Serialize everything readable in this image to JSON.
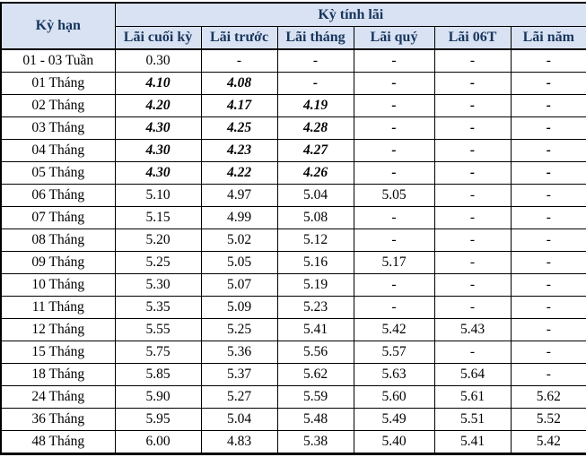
{
  "table": {
    "corner_header": "Kỳ hạn",
    "group_header": "Kỳ tính lãi",
    "columns": [
      "Lãi cuối kỳ",
      "Lãi trước",
      "Lãi tháng",
      "Lãi quý",
      "Lãi 06T",
      "Lãi năm"
    ],
    "rows": [
      {
        "term": "01 - 03 Tuần",
        "emphasis": false,
        "values": [
          "0.30",
          "-",
          "-",
          "-",
          "-",
          "-"
        ]
      },
      {
        "term": "01 Tháng",
        "emphasis": true,
        "values": [
          "4.10",
          "4.08",
          "-",
          "-",
          "-",
          "-"
        ]
      },
      {
        "term": "02 Tháng",
        "emphasis": true,
        "values": [
          "4.20",
          "4.17",
          "4.19",
          "-",
          "-",
          "-"
        ]
      },
      {
        "term": "03 Tháng",
        "emphasis": true,
        "values": [
          "4.30",
          "4.25",
          "4.28",
          "-",
          "-",
          "-"
        ]
      },
      {
        "term": "04 Tháng",
        "emphasis": true,
        "values": [
          "4.30",
          "4.23",
          "4.27",
          "-",
          "-",
          "-"
        ]
      },
      {
        "term": "05 Tháng",
        "emphasis": true,
        "values": [
          "4.30",
          "4.22",
          "4.26",
          "-",
          "-",
          "-"
        ]
      },
      {
        "term": "06 Tháng",
        "emphasis": false,
        "values": [
          "5.10",
          "4.97",
          "5.04",
          "5.05",
          "-",
          "-"
        ]
      },
      {
        "term": "07 Tháng",
        "emphasis": false,
        "values": [
          "5.15",
          "4.99",
          "5.08",
          "-",
          "-",
          "-"
        ]
      },
      {
        "term": "08 Tháng",
        "emphasis": false,
        "values": [
          "5.20",
          "5.02",
          "5.12",
          "-",
          "-",
          "-"
        ]
      },
      {
        "term": "09 Tháng",
        "emphasis": false,
        "values": [
          "5.25",
          "5.05",
          "5.16",
          "5.17",
          "-",
          "-"
        ]
      },
      {
        "term": "10 Tháng",
        "emphasis": false,
        "values": [
          "5.30",
          "5.07",
          "5.19",
          "-",
          "-",
          "-"
        ]
      },
      {
        "term": "11 Tháng",
        "emphasis": false,
        "values": [
          "5.35",
          "5.09",
          "5.23",
          "-",
          "-",
          "-"
        ]
      },
      {
        "term": "12 Tháng",
        "emphasis": false,
        "values": [
          "5.55",
          "5.25",
          "5.41",
          "5.42",
          "5.43",
          "-"
        ]
      },
      {
        "term": "15 Tháng",
        "emphasis": false,
        "values": [
          "5.75",
          "5.36",
          "5.56",
          "5.57",
          "-",
          "-"
        ]
      },
      {
        "term": "18 Tháng",
        "emphasis": false,
        "values": [
          "5.85",
          "5.37",
          "5.62",
          "5.63",
          "5.64",
          "-"
        ]
      },
      {
        "term": "24 Tháng",
        "emphasis": false,
        "values": [
          "5.90",
          "5.27",
          "5.59",
          "5.60",
          "5.61",
          "5.62"
        ]
      },
      {
        "term": "36 Tháng",
        "emphasis": false,
        "values": [
          "5.95",
          "5.04",
          "5.48",
          "5.49",
          "5.51",
          "5.52"
        ]
      },
      {
        "term": "48 Tháng",
        "emphasis": false,
        "values": [
          "6.00",
          "4.83",
          "5.38",
          "5.40",
          "5.41",
          "5.42"
        ]
      }
    ]
  },
  "colors": {
    "header_bg": "#d9e2f3",
    "header_text": "#17365d",
    "body_text": "#000000",
    "border": "#000000"
  }
}
